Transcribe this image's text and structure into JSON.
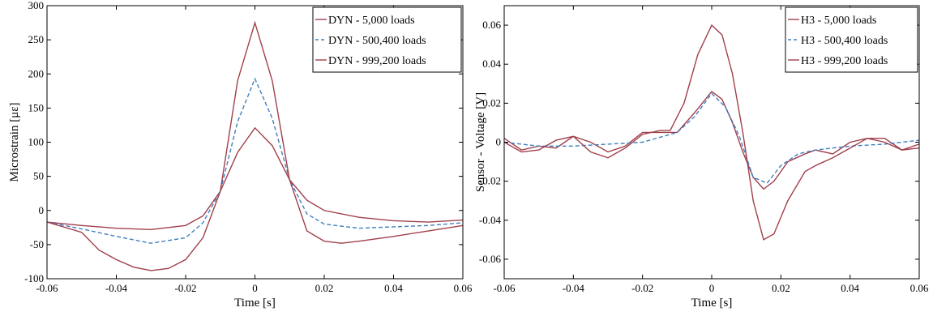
{
  "chart_data": [
    {
      "type": "line",
      "xlabel": "Time [s]",
      "ylabel": "Microstrain [με]",
      "xlim": [
        -0.06,
        0.06
      ],
      "ylim": [
        -100,
        300
      ],
      "xticks": [
        "-0.06",
        "-0.04",
        "-0.02",
        "0",
        "0.02",
        "0.04",
        "0.06"
      ],
      "xtick_values": [
        -0.06,
        -0.04,
        -0.02,
        0,
        0.02,
        0.04,
        0.06
      ],
      "yticks": [
        "-100",
        "-50",
        "0",
        "50",
        "100",
        "150",
        "200",
        "250",
        "300"
      ],
      "ytick_values": [
        -100,
        -50,
        0,
        50,
        100,
        150,
        200,
        250,
        300
      ],
      "grid": false,
      "legend_position": "top-right",
      "series": [
        {
          "name": "DYN - 5,000 loads",
          "color": "#a0404b",
          "style": "solid",
          "points": [
            [
              -0.06,
              -17
            ],
            [
              -0.05,
              -22
            ],
            [
              -0.04,
              -26
            ],
            [
              -0.03,
              -28
            ],
            [
              -0.02,
              -22
            ],
            [
              -0.015,
              -8
            ],
            [
              -0.01,
              28
            ],
            [
              -0.005,
              85
            ],
            [
              0,
              121
            ],
            [
              0.005,
              95
            ],
            [
              0.01,
              45
            ],
            [
              0.015,
              15
            ],
            [
              0.02,
              0
            ],
            [
              0.03,
              -10
            ],
            [
              0.04,
              -15
            ],
            [
              0.05,
              -17
            ],
            [
              0.06,
              -14
            ]
          ]
        },
        {
          "name": "DYN - 500,400 loads",
          "color": "#3f7fbf",
          "style": "dashed",
          "points": [
            [
              -0.06,
              -17
            ],
            [
              -0.05,
              -27
            ],
            [
              -0.04,
              -38
            ],
            [
              -0.03,
              -48
            ],
            [
              -0.02,
              -40
            ],
            [
              -0.015,
              -18
            ],
            [
              -0.01,
              28
            ],
            [
              -0.005,
              130
            ],
            [
              0,
              193
            ],
            [
              0.005,
              135
            ],
            [
              0.01,
              45
            ],
            [
              0.015,
              -5
            ],
            [
              0.02,
              -20
            ],
            [
              0.03,
              -26
            ],
            [
              0.04,
              -24
            ],
            [
              0.05,
              -22
            ],
            [
              0.06,
              -18
            ]
          ]
        },
        {
          "name": "DYN - 999,200 loads",
          "color": "#a0404b",
          "style": "solid",
          "points": [
            [
              -0.06,
              -17
            ],
            [
              -0.05,
              -32
            ],
            [
              -0.045,
              -58
            ],
            [
              -0.04,
              -72
            ],
            [
              -0.035,
              -83
            ],
            [
              -0.03,
              -88
            ],
            [
              -0.025,
              -85
            ],
            [
              -0.02,
              -72
            ],
            [
              -0.015,
              -40
            ],
            [
              -0.01,
              28
            ],
            [
              -0.005,
              190
            ],
            [
              0,
              275
            ],
            [
              0.005,
              190
            ],
            [
              0.01,
              45
            ],
            [
              0.015,
              -30
            ],
            [
              0.02,
              -45
            ],
            [
              0.025,
              -48
            ],
            [
              0.03,
              -45
            ],
            [
              0.04,
              -38
            ],
            [
              0.05,
              -30
            ],
            [
              0.06,
              -22
            ]
          ]
        }
      ]
    },
    {
      "type": "line",
      "xlabel": "Time [s]",
      "ylabel": "Sensor - Voltage [V]",
      "xlim": [
        -0.06,
        0.06
      ],
      "ylim": [
        -0.07,
        0.07
      ],
      "xticks": [
        "-0.06",
        "-0.04",
        "-0.02",
        "0",
        "0.02",
        "0.04",
        "0.06"
      ],
      "xtick_values": [
        -0.06,
        -0.04,
        -0.02,
        0,
        0.02,
        0.04,
        0.06
      ],
      "yticks": [
        "-0.06",
        "-0.04",
        "-0.02",
        "0",
        "0.02",
        "0.04",
        "0.06"
      ],
      "ytick_values": [
        -0.06,
        -0.04,
        -0.02,
        0,
        0.02,
        0.04,
        0.06
      ],
      "grid": false,
      "legend_position": "top-right",
      "series": [
        {
          "name": "H3 - 5,000 loads",
          "color": "#a0404b",
          "style": "solid",
          "points": [
            [
              -0.06,
              0.002
            ],
            [
              -0.055,
              -0.004
            ],
            [
              -0.05,
              -0.002
            ],
            [
              -0.045,
              -0.003
            ],
            [
              -0.04,
              0.003
            ],
            [
              -0.035,
              0.0
            ],
            [
              -0.03,
              -0.005
            ],
            [
              -0.025,
              -0.002
            ],
            [
              -0.02,
              0.005
            ],
            [
              -0.015,
              0.005
            ],
            [
              -0.01,
              0.005
            ],
            [
              -0.005,
              0.015
            ],
            [
              0,
              0.026
            ],
            [
              0.003,
              0.022
            ],
            [
              0.006,
              0.01
            ],
            [
              0.009,
              -0.005
            ],
            [
              0.012,
              -0.018
            ],
            [
              0.015,
              -0.024
            ],
            [
              0.018,
              -0.02
            ],
            [
              0.022,
              -0.01
            ],
            [
              0.027,
              -0.006
            ],
            [
              0.03,
              -0.004
            ],
            [
              0.035,
              -0.006
            ],
            [
              0.04,
              0.0
            ],
            [
              0.045,
              0.002
            ],
            [
              0.05,
              0.002
            ],
            [
              0.055,
              -0.004
            ],
            [
              0.06,
              -0.003
            ]
          ]
        },
        {
          "name": "H3 - 500,400 loads",
          "color": "#3f7fbf",
          "style": "dashed",
          "points": [
            [
              -0.06,
              0.0
            ],
            [
              -0.05,
              -0.002
            ],
            [
              -0.04,
              -0.002
            ],
            [
              -0.03,
              -0.001
            ],
            [
              -0.02,
              0.0
            ],
            [
              -0.01,
              0.005
            ],
            [
              -0.005,
              0.013
            ],
            [
              0,
              0.025
            ],
            [
              0.004,
              0.018
            ],
            [
              0.008,
              0.003
            ],
            [
              0.012,
              -0.018
            ],
            [
              0.016,
              -0.021
            ],
            [
              0.02,
              -0.012
            ],
            [
              0.025,
              -0.006
            ],
            [
              0.03,
              -0.004
            ],
            [
              0.04,
              -0.002
            ],
            [
              0.05,
              -0.001
            ],
            [
              0.06,
              0.001
            ]
          ]
        },
        {
          "name": "H3 - 999,200 loads",
          "color": "#a0404b",
          "style": "solid",
          "points": [
            [
              -0.06,
              0.0
            ],
            [
              -0.055,
              -0.005
            ],
            [
              -0.05,
              -0.004
            ],
            [
              -0.045,
              0.001
            ],
            [
              -0.04,
              0.003
            ],
            [
              -0.035,
              -0.005
            ],
            [
              -0.03,
              -0.008
            ],
            [
              -0.025,
              -0.003
            ],
            [
              -0.02,
              0.004
            ],
            [
              -0.015,
              0.006
            ],
            [
              -0.012,
              0.006
            ],
            [
              -0.008,
              0.02
            ],
            [
              -0.004,
              0.045
            ],
            [
              0,
              0.06
            ],
            [
              0.003,
              0.055
            ],
            [
              0.006,
              0.035
            ],
            [
              0.009,
              0.005
            ],
            [
              0.012,
              -0.03
            ],
            [
              0.015,
              -0.05
            ],
            [
              0.018,
              -0.047
            ],
            [
              0.022,
              -0.03
            ],
            [
              0.027,
              -0.015
            ],
            [
              0.03,
              -0.012
            ],
            [
              0.035,
              -0.008
            ],
            [
              0.04,
              -0.003
            ],
            [
              0.045,
              0.002
            ],
            [
              0.05,
              0.0
            ],
            [
              0.055,
              -0.004
            ],
            [
              0.06,
              -0.001
            ]
          ]
        }
      ]
    }
  ]
}
